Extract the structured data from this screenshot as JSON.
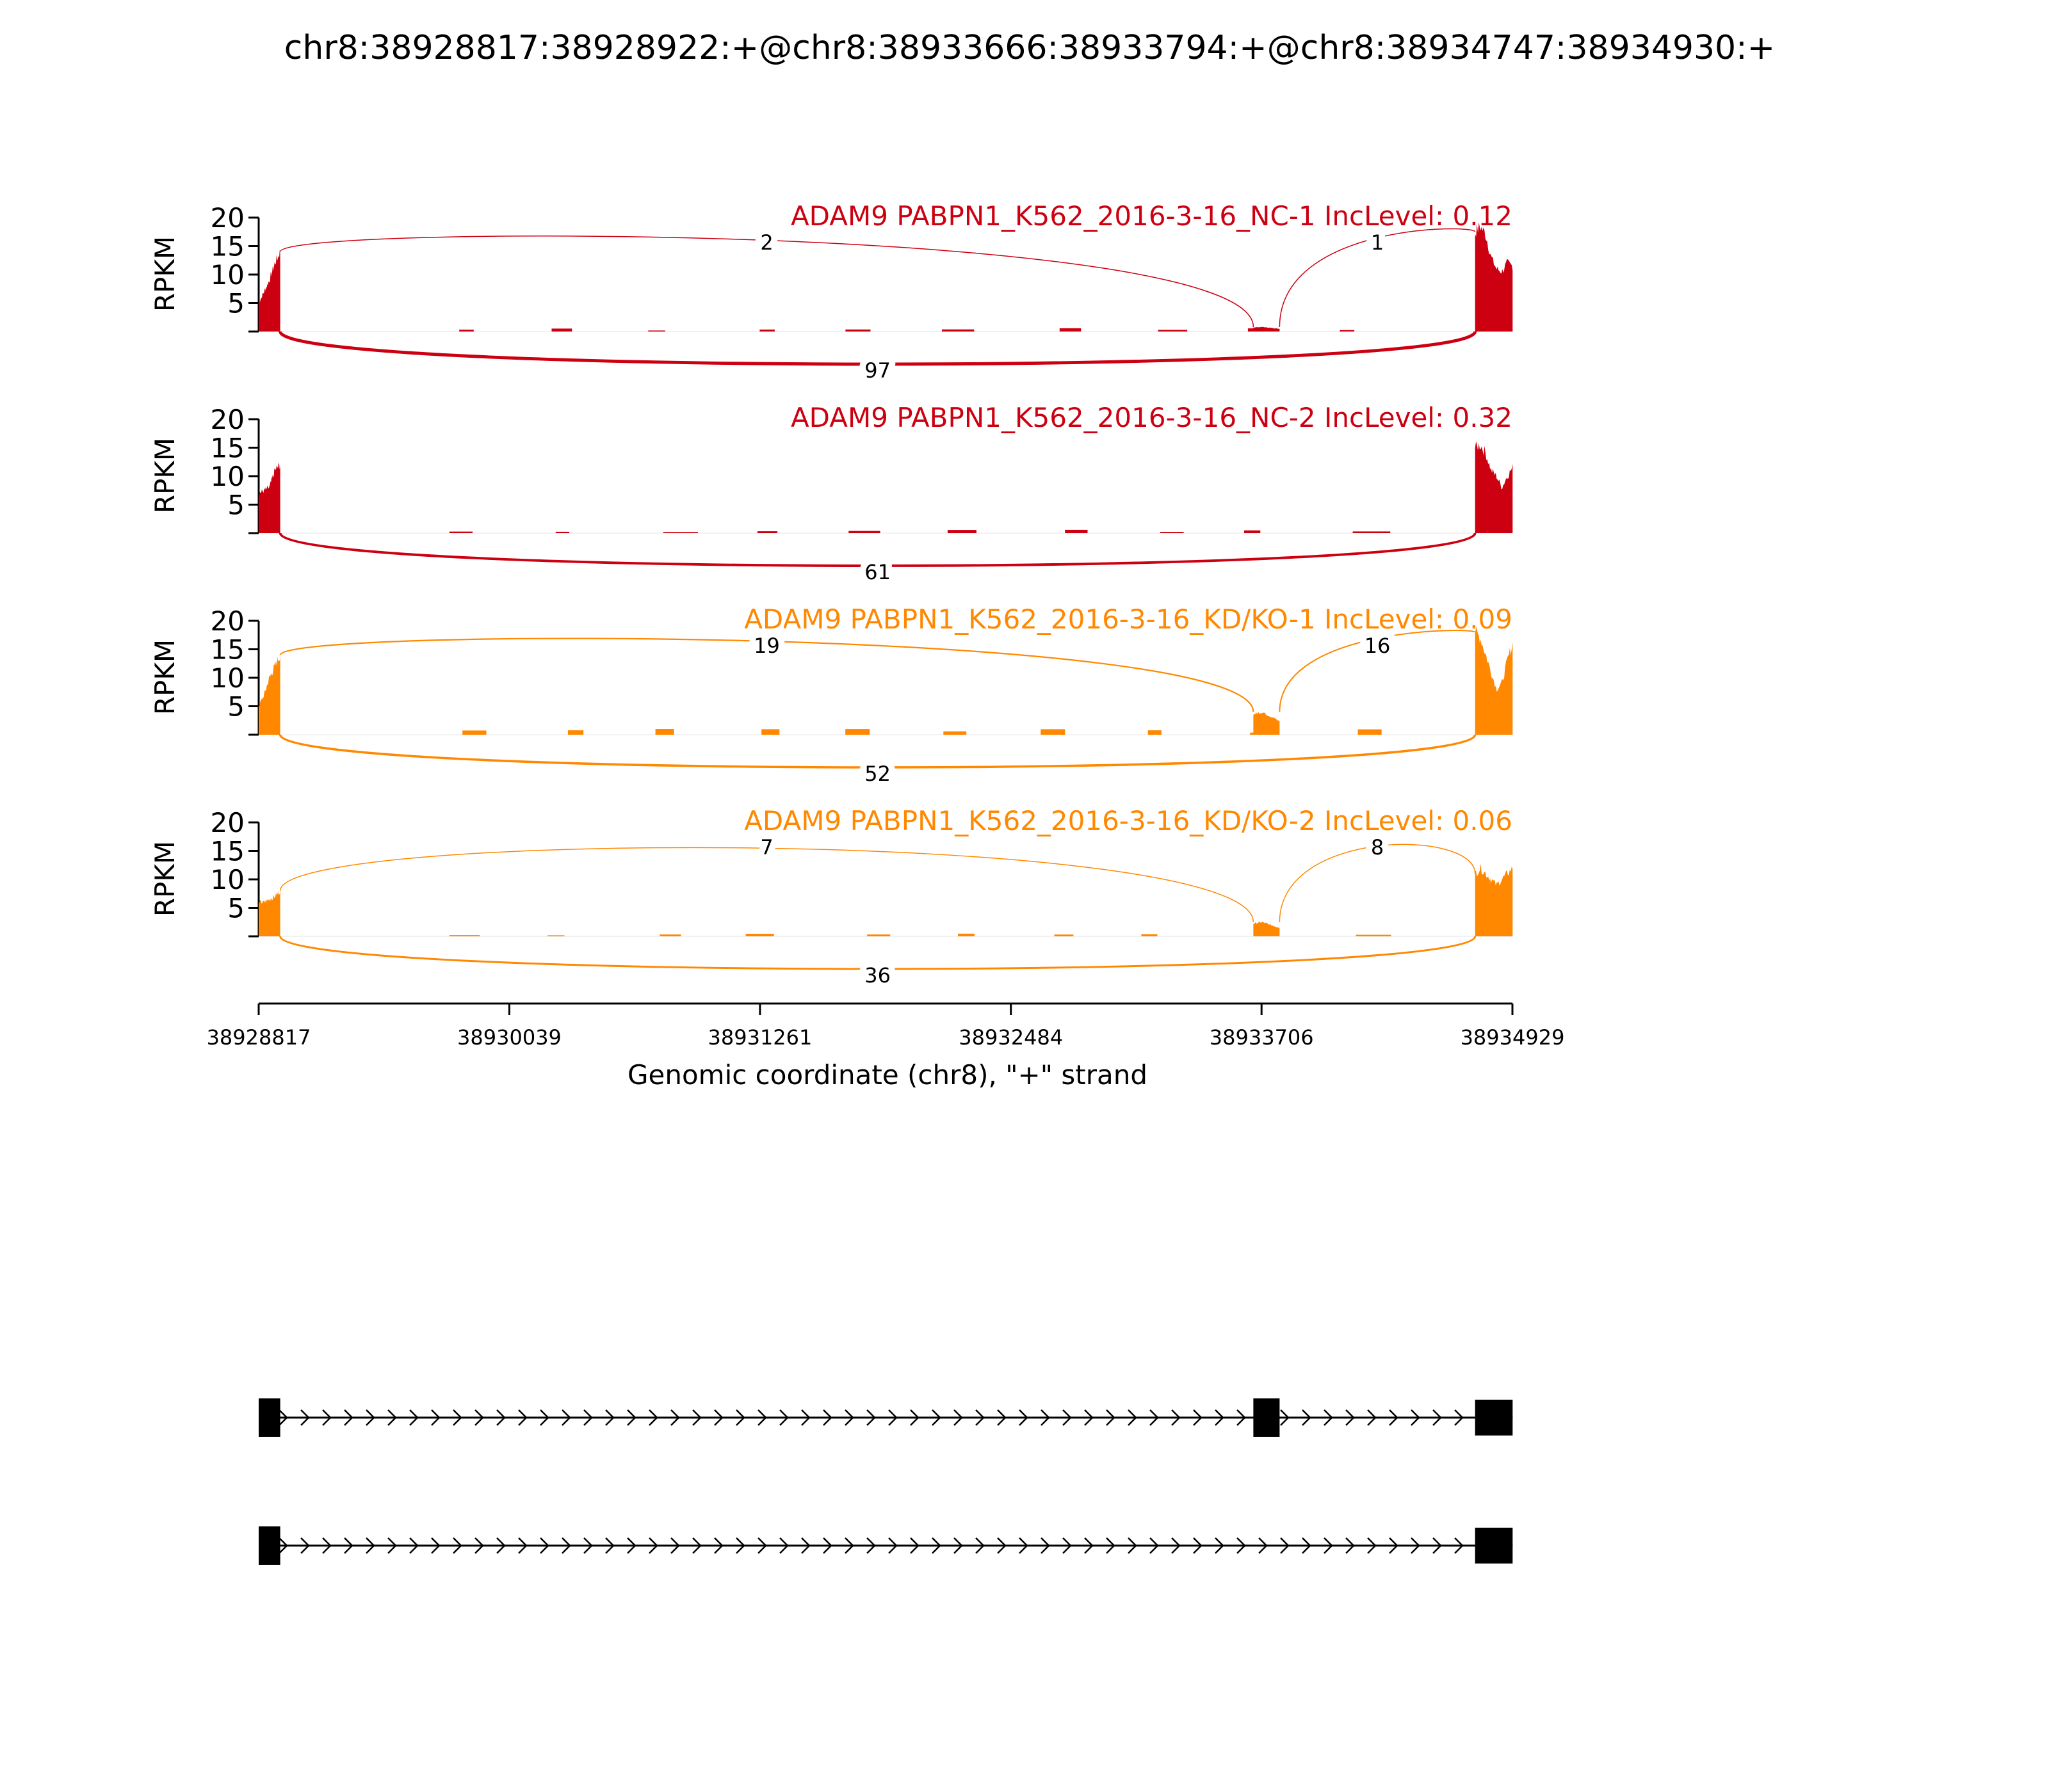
{
  "chart_data": {
    "type": "area",
    "title": "chr8:38928817:38928922:+@chr8:38933666:38933794:+@chr8:38934747:38934930:+",
    "xlabel": "Genomic coordinate (chr8), \"+\" strand",
    "ylabel": "RPKM",
    "xlim": [
      38928817,
      38934929
    ],
    "ylim": [
      0,
      20
    ],
    "x_ticks": [
      "38928817",
      "38930039",
      "38931261",
      "38932484",
      "38933706",
      "38934929"
    ],
    "y_ticks": [
      "5",
      "10",
      "15",
      "20"
    ],
    "exons": [
      {
        "start": 38928817,
        "end": 38928922
      },
      {
        "start": 38933666,
        "end": 38933794
      },
      {
        "start": 38934747,
        "end": 38934930
      }
    ],
    "panels": [
      {
        "title": "ADAM9 PABPN1_K562_2016-3-16_NC-1 IncLevel: 0.12",
        "color": "#cc0011",
        "junctions": [
          {
            "from": 38928922,
            "to": 38933666,
            "count": "2",
            "side": "top"
          },
          {
            "from": 38933794,
            "to": 38934747,
            "count": "1",
            "side": "top"
          },
          {
            "from": 38928922,
            "to": 38934747,
            "count": "97",
            "side": "bottom"
          }
        ],
        "exon1_profile": [
          5,
          7,
          9,
          12,
          14
        ],
        "exon2_peak": 0.8,
        "exon3_profile": [
          17.5,
          18.5,
          17,
          13,
          11,
          10.5,
          12,
          11.5
        ],
        "intron_peak": 0.6
      },
      {
        "title": "ADAM9 PABPN1_K562_2016-3-16_NC-2 IncLevel: 0.32",
        "color": "#cc0011",
        "junctions": [
          {
            "from": 38928922,
            "to": 38934747,
            "count": "61",
            "side": "bottom"
          }
        ],
        "exon1_profile": [
          7,
          7.5,
          8,
          11,
          12
        ],
        "exon2_peak": 0,
        "exon3_profile": [
          15,
          15.5,
          14,
          11,
          10,
          8,
          10,
          11.5
        ],
        "intron_peak": 0.6
      },
      {
        "title": "ADAM9 PABPN1_K562_2016-3-16_KD/KO-1 IncLevel: 0.09",
        "color": "#ff8800",
        "junctions": [
          {
            "from": 38928922,
            "to": 38933666,
            "count": "19",
            "side": "top"
          },
          {
            "from": 38933794,
            "to": 38934747,
            "count": "16",
            "side": "top"
          },
          {
            "from": 38928922,
            "to": 38934747,
            "count": "52",
            "side": "bottom"
          }
        ],
        "exon1_profile": [
          5,
          7,
          10,
          12,
          14
        ],
        "exon2_peak": 4,
        "exon3_profile": [
          18,
          17,
          14,
          11,
          8,
          9,
          13,
          16
        ],
        "intron_peak": 1.2
      },
      {
        "title": "ADAM9 PABPN1_K562_2016-3-16_KD/KO-2 IncLevel: 0.06",
        "color": "#ff8800",
        "junctions": [
          {
            "from": 38928922,
            "to": 38933666,
            "count": "7",
            "side": "top"
          },
          {
            "from": 38933794,
            "to": 38934747,
            "count": "8",
            "side": "top"
          },
          {
            "from": 38928922,
            "to": 38934747,
            "count": "36",
            "side": "bottom"
          }
        ],
        "exon1_profile": [
          6,
          6,
          6.5,
          7,
          8
        ],
        "exon2_peak": 2.5,
        "exon3_profile": [
          11,
          12,
          11,
          10,
          9,
          10,
          11,
          12
        ]
      }
    ],
    "isoforms": [
      {
        "exons": [
          [
            38928817,
            38928922
          ],
          [
            38933666,
            38933794
          ],
          [
            38934747,
            38934930
          ]
        ]
      },
      {
        "exons": [
          [
            38928817,
            38928922
          ],
          [
            38934747,
            38934930
          ]
        ]
      }
    ]
  }
}
